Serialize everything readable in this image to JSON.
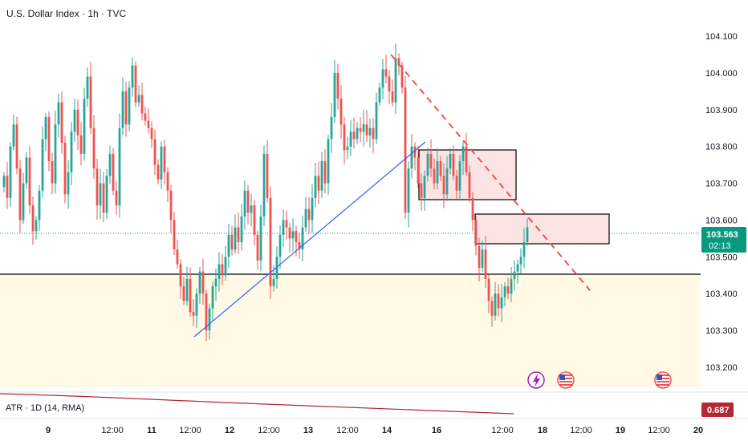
{
  "header": {
    "title": "U.S. Dollar Index · 1h · TVC"
  },
  "colors": {
    "up": "#26a69a",
    "down": "#ef5350",
    "trend_line": "#2962ff",
    "zone_fill": "#fff9e6",
    "box_fill": "#fde4e4",
    "current_tag": "#089981",
    "atr_tag": "#b22833",
    "atr_line": "#b22833"
  },
  "price_axis": {
    "labels": [
      "104.100",
      "104.000",
      "103.900",
      "103.800",
      "103.700",
      "103.600",
      "103.500",
      "103.400",
      "103.300",
      "103.200"
    ],
    "current_price": "103.563",
    "countdown": "02:13"
  },
  "time_axis": {
    "labels": [
      "9",
      "12:00",
      "11",
      "12:00",
      "12",
      "12:00",
      "13",
      "12:00",
      "14",
      "16",
      "12:00",
      "18",
      "12:00",
      "19",
      "12:00",
      "20"
    ]
  },
  "indicator": {
    "label": "ATR · 1D (14, RMA)",
    "value": "0.687"
  },
  "events": [
    {
      "name": "lightning-event-icon",
      "glyph": "⚡"
    },
    {
      "name": "us-flag-event-icon",
      "glyph": ""
    },
    {
      "name": "us-flag-event-icon",
      "glyph": ""
    }
  ],
  "chart_data": {
    "type": "candlestick",
    "title": "U.S. Dollar Index · 1h · TVC",
    "ylim": [
      103.2,
      104.1
    ],
    "levels": {
      "horizontal_support": 103.45,
      "current_price": 103.563
    },
    "zones": [
      {
        "label": "",
        "from": 103.66,
        "to": 103.79
      },
      {
        "label": "",
        "from": 103.54,
        "to": 103.62
      }
    ],
    "close": [
      103.72,
      103.66,
      103.8,
      103.86,
      103.74,
      103.6,
      103.7,
      103.77,
      103.64,
      103.57,
      103.6,
      103.68,
      103.82,
      103.88,
      103.76,
      103.7,
      103.86,
      103.92,
      103.81,
      103.67,
      103.73,
      103.84,
      103.9,
      103.83,
      103.78,
      103.93,
      103.99,
      103.85,
      103.74,
      103.64,
      103.7,
      103.62,
      103.72,
      103.78,
      103.68,
      103.64,
      103.85,
      103.95,
      103.86,
      103.96,
      104.02,
      103.92,
      103.94,
      103.89,
      103.87,
      103.85,
      103.82,
      103.75,
      103.71,
      103.8,
      103.73,
      103.68,
      103.6,
      103.52,
      103.48,
      103.42,
      103.38,
      103.44,
      103.35,
      103.34,
      103.4,
      103.46,
      103.4,
      103.3,
      103.36,
      103.42,
      103.44,
      103.48,
      103.45,
      103.5,
      103.56,
      103.52,
      103.58,
      103.54,
      103.61,
      103.68,
      103.62,
      103.64,
      103.56,
      103.49,
      103.61,
      103.78,
      103.66,
      103.42,
      103.44,
      103.5,
      103.56,
      103.6,
      103.58,
      103.55,
      103.57,
      103.54,
      103.52,
      103.58,
      103.63,
      103.6,
      103.66,
      103.72,
      103.68,
      103.76,
      103.7,
      103.82,
      103.88,
      104.0,
      103.93,
      103.86,
      103.79,
      103.8,
      103.84,
      103.82,
      103.85,
      103.84,
      103.86,
      103.83,
      103.85,
      103.82,
      103.92,
      103.96,
      104.01,
      103.99,
      103.95,
      103.92,
      104.04,
      104.02,
      103.96,
      103.62,
      103.74,
      103.8,
      103.77,
      103.7,
      103.66,
      103.72,
      103.78,
      103.74,
      103.7,
      103.76,
      103.72,
      103.67,
      103.74,
      103.78,
      103.72,
      103.68,
      103.76,
      103.8,
      103.73,
      103.66,
      103.6,
      103.53,
      103.47,
      103.52,
      103.44,
      103.38,
      103.34,
      103.4,
      103.36,
      103.39,
      103.42,
      103.4,
      103.44,
      103.46,
      103.48,
      103.5,
      103.54,
      103.58
    ]
  }
}
